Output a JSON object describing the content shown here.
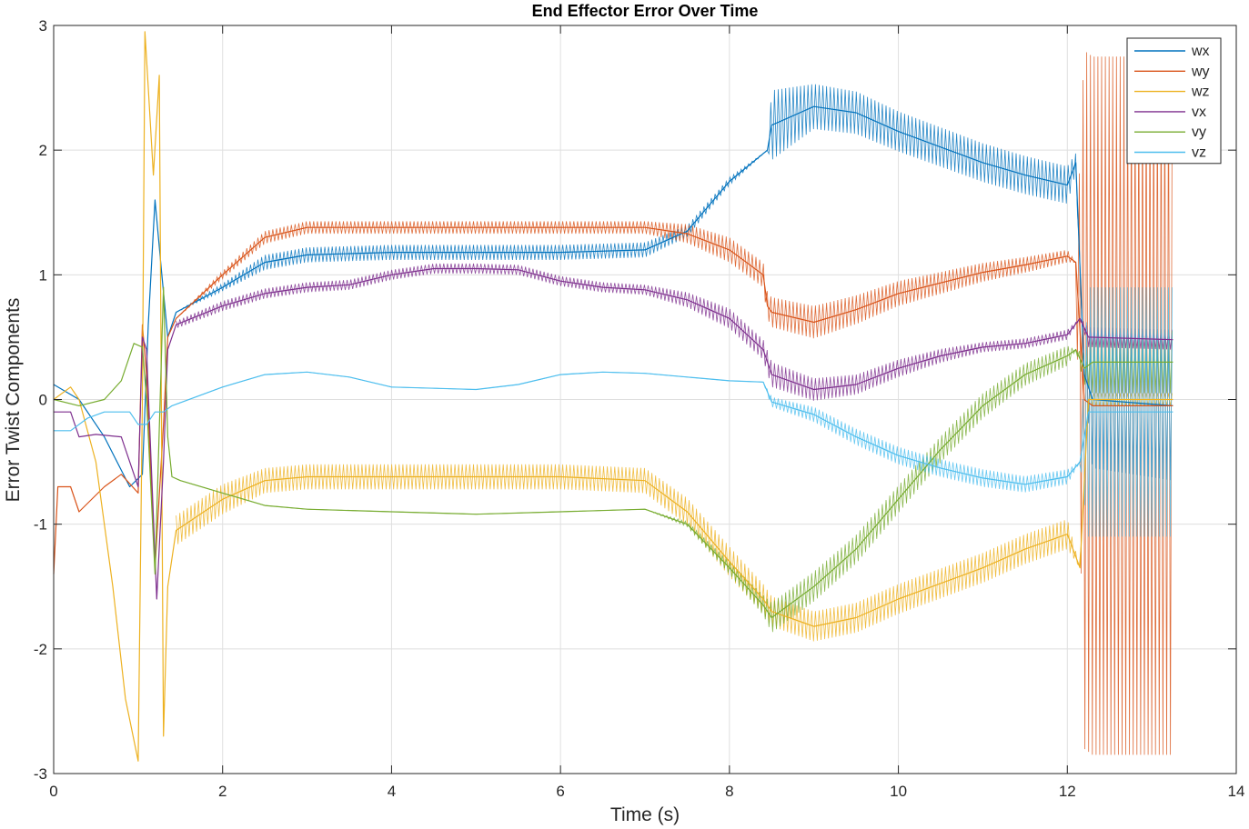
{
  "chart_data": {
    "type": "line",
    "title": "End Effector Error Over Time",
    "xlabel": "Time (s)",
    "ylabel": "Error Twist Components",
    "xlim": [
      0,
      14
    ],
    "ylim": [
      -3,
      3
    ],
    "xticks": [
      0,
      2,
      4,
      6,
      8,
      10,
      12,
      14
    ],
    "yticks": [
      -3,
      -2,
      -1,
      0,
      1,
      2,
      3
    ],
    "grid": true,
    "legend": {
      "placement": "top-right"
    },
    "series": [
      {
        "name": "wx",
        "color": "#0072BD",
        "points": [
          [
            0,
            0.12
          ],
          [
            0.3,
            0.0
          ],
          [
            0.6,
            -0.3
          ],
          [
            0.9,
            -0.7
          ],
          [
            1.05,
            -0.6
          ],
          [
            1.12,
            0.6
          ],
          [
            1.2,
            1.6
          ],
          [
            1.28,
            1.0
          ],
          [
            1.35,
            0.5
          ],
          [
            1.45,
            0.7
          ],
          [
            2,
            0.9
          ],
          [
            2.5,
            1.1
          ],
          [
            3,
            1.16
          ],
          [
            4,
            1.18
          ],
          [
            5,
            1.18
          ],
          [
            6,
            1.18
          ],
          [
            7,
            1.2
          ],
          [
            7.5,
            1.35
          ],
          [
            8,
            1.75
          ],
          [
            8.45,
            2.0
          ],
          [
            8.5,
            2.2
          ],
          [
            9,
            2.35
          ],
          [
            9.5,
            2.3
          ],
          [
            10,
            2.15
          ],
          [
            11,
            1.9
          ],
          [
            11.5,
            1.8
          ],
          [
            12,
            1.72
          ],
          [
            12.1,
            1.9
          ],
          [
            12.2,
            0.2
          ],
          [
            12.3,
            0.0
          ],
          [
            13.25,
            -0.05
          ]
        ],
        "band": [
          [
            1.45,
            0.0
          ],
          [
            2,
            0.03
          ],
          [
            2.5,
            0.06
          ],
          [
            3,
            0.06
          ],
          [
            7,
            0.06
          ],
          [
            8,
            0.03
          ],
          [
            8.45,
            0.0
          ],
          [
            8.5,
            0.28
          ],
          [
            9,
            0.18
          ],
          [
            10,
            0.16
          ],
          [
            12,
            0.15
          ],
          [
            12.2,
            0.0
          ],
          [
            12.3,
            0.55
          ],
          [
            13.25,
            0.6
          ]
        ]
      },
      {
        "name": "wy",
        "color": "#D95319",
        "points": [
          [
            0,
            -1.4
          ],
          [
            0.05,
            -0.7
          ],
          [
            0.2,
            -0.7
          ],
          [
            0.3,
            -0.9
          ],
          [
            0.6,
            -0.7
          ],
          [
            0.8,
            -0.6
          ],
          [
            1.0,
            -0.75
          ],
          [
            1.05,
            0.6
          ],
          [
            1.1,
            0.2
          ],
          [
            1.2,
            -1.35
          ],
          [
            1.3,
            -0.2
          ],
          [
            1.35,
            0.5
          ],
          [
            1.45,
            0.65
          ],
          [
            2,
            1.0
          ],
          [
            2.5,
            1.3
          ],
          [
            3,
            1.38
          ],
          [
            4,
            1.38
          ],
          [
            5,
            1.38
          ],
          [
            6,
            1.38
          ],
          [
            7,
            1.38
          ],
          [
            7.5,
            1.33
          ],
          [
            8,
            1.2
          ],
          [
            8.4,
            1.0
          ],
          [
            8.45,
            0.75
          ],
          [
            8.5,
            0.7
          ],
          [
            9,
            0.62
          ],
          [
            9.5,
            0.72
          ],
          [
            10,
            0.85
          ],
          [
            11,
            1.02
          ],
          [
            11.5,
            1.08
          ],
          [
            12,
            1.15
          ],
          [
            12.1,
            1.1
          ],
          [
            12.2,
            0.0
          ],
          [
            12.3,
            -0.05
          ],
          [
            13.25,
            -0.05
          ]
        ],
        "band": [
          [
            1.45,
            0.0
          ],
          [
            2,
            0.03
          ],
          [
            2.5,
            0.05
          ],
          [
            7,
            0.05
          ],
          [
            8,
            0.1
          ],
          [
            8.45,
            0.1
          ],
          [
            8.5,
            0.12
          ],
          [
            9,
            0.13
          ],
          [
            10,
            0.1
          ],
          [
            12,
            0.05
          ],
          [
            12.1,
            0.0
          ],
          [
            12.2,
            2.8
          ],
          [
            13.25,
            2.8
          ]
        ]
      },
      {
        "name": "wz",
        "color": "#EDB120",
        "points": [
          [
            0,
            0.0
          ],
          [
            0.2,
            0.1
          ],
          [
            0.3,
            0.0
          ],
          [
            0.5,
            -0.5
          ],
          [
            0.7,
            -1.5
          ],
          [
            0.85,
            -2.4
          ],
          [
            1.0,
            -2.9
          ],
          [
            1.05,
            0.0
          ],
          [
            1.08,
            2.95
          ],
          [
            1.12,
            2.5
          ],
          [
            1.18,
            1.8
          ],
          [
            1.25,
            2.6
          ],
          [
            1.3,
            -2.7
          ],
          [
            1.35,
            -1.5
          ],
          [
            1.45,
            -1.05
          ],
          [
            2,
            -0.8
          ],
          [
            2.5,
            -0.65
          ],
          [
            3,
            -0.62
          ],
          [
            4,
            -0.62
          ],
          [
            5,
            -0.62
          ],
          [
            6,
            -0.62
          ],
          [
            7,
            -0.65
          ],
          [
            7.5,
            -0.9
          ],
          [
            8,
            -1.3
          ],
          [
            8.4,
            -1.6
          ],
          [
            8.5,
            -1.7
          ],
          [
            9,
            -1.82
          ],
          [
            9.5,
            -1.75
          ],
          [
            10,
            -1.6
          ],
          [
            11,
            -1.35
          ],
          [
            11.5,
            -1.2
          ],
          [
            12,
            -1.08
          ],
          [
            12.15,
            -1.35
          ],
          [
            12.25,
            0.0
          ],
          [
            13.25,
            0.0
          ]
        ],
        "band": [
          [
            1.45,
            0.12
          ],
          [
            2,
            0.12
          ],
          [
            2.5,
            0.1
          ],
          [
            7,
            0.1
          ],
          [
            8,
            0.12
          ],
          [
            8.5,
            0.12
          ],
          [
            9,
            0.12
          ],
          [
            10,
            0.12
          ],
          [
            12,
            0.12
          ],
          [
            12.15,
            0.0
          ],
          [
            12.25,
            0.05
          ],
          [
            13.25,
            0.05
          ]
        ]
      },
      {
        "name": "vx",
        "color": "#7E2F8E",
        "points": [
          [
            0,
            -0.1
          ],
          [
            0.2,
            -0.1
          ],
          [
            0.3,
            -0.3
          ],
          [
            0.5,
            -0.28
          ],
          [
            0.8,
            -0.3
          ],
          [
            1.0,
            -0.7
          ],
          [
            1.05,
            0.5
          ],
          [
            1.1,
            0.4
          ],
          [
            1.22,
            -1.6
          ],
          [
            1.3,
            -0.5
          ],
          [
            1.35,
            0.4
          ],
          [
            1.45,
            0.6
          ],
          [
            2,
            0.75
          ],
          [
            2.5,
            0.85
          ],
          [
            3,
            0.9
          ],
          [
            3.5,
            0.92
          ],
          [
            4,
            1.0
          ],
          [
            4.5,
            1.05
          ],
          [
            5,
            1.05
          ],
          [
            5.5,
            1.04
          ],
          [
            6,
            0.95
          ],
          [
            6.5,
            0.9
          ],
          [
            7,
            0.88
          ],
          [
            7.5,
            0.8
          ],
          [
            8,
            0.65
          ],
          [
            8.4,
            0.4
          ],
          [
            8.5,
            0.2
          ],
          [
            9,
            0.08
          ],
          [
            9.5,
            0.12
          ],
          [
            10,
            0.25
          ],
          [
            10.5,
            0.35
          ],
          [
            11,
            0.42
          ],
          [
            11.5,
            0.45
          ],
          [
            12,
            0.52
          ],
          [
            12.15,
            0.65
          ],
          [
            12.25,
            0.5
          ],
          [
            13.25,
            0.48
          ]
        ],
        "band": [
          [
            1.45,
            0.03
          ],
          [
            2,
            0.04
          ],
          [
            2.5,
            0.04
          ],
          [
            7,
            0.04
          ],
          [
            7.5,
            0.06
          ],
          [
            8,
            0.08
          ],
          [
            8.4,
            0.08
          ],
          [
            8.5,
            0.1
          ],
          [
            9,
            0.09
          ],
          [
            10,
            0.07
          ],
          [
            11,
            0.04
          ],
          [
            12,
            0.04
          ],
          [
            12.15,
            0.0
          ],
          [
            12.25,
            0.08
          ],
          [
            13.25,
            0.08
          ]
        ]
      },
      {
        "name": "vy",
        "color": "#77AC30",
        "points": [
          [
            0,
            0.0
          ],
          [
            0.3,
            -0.05
          ],
          [
            0.6,
            0.0
          ],
          [
            0.8,
            0.15
          ],
          [
            0.95,
            0.45
          ],
          [
            1.05,
            0.42
          ],
          [
            1.1,
            0.0
          ],
          [
            1.2,
            -1.4
          ],
          [
            1.3,
            0.9
          ],
          [
            1.35,
            -0.3
          ],
          [
            1.4,
            -0.62
          ],
          [
            1.5,
            -0.65
          ],
          [
            2,
            -0.75
          ],
          [
            2.5,
            -0.85
          ],
          [
            3,
            -0.88
          ],
          [
            4,
            -0.9
          ],
          [
            5,
            -0.92
          ],
          [
            6,
            -0.9
          ],
          [
            7,
            -0.88
          ],
          [
            7.5,
            -1.0
          ],
          [
            8,
            -1.35
          ],
          [
            8.4,
            -1.65
          ],
          [
            8.5,
            -1.75
          ],
          [
            9,
            -1.5
          ],
          [
            9.5,
            -1.2
          ],
          [
            10,
            -0.8
          ],
          [
            10.5,
            -0.4
          ],
          [
            11,
            -0.05
          ],
          [
            11.5,
            0.2
          ],
          [
            12,
            0.35
          ],
          [
            12.1,
            0.4
          ],
          [
            12.2,
            0.25
          ],
          [
            12.3,
            0.3
          ],
          [
            13.25,
            0.3
          ]
        ],
        "band": [
          [
            1.45,
            0.0
          ],
          [
            2,
            0.0
          ],
          [
            7,
            0.0
          ],
          [
            7.5,
            0.02
          ],
          [
            8,
            0.05
          ],
          [
            8.4,
            0.08
          ],
          [
            8.5,
            0.12
          ],
          [
            9,
            0.12
          ],
          [
            10,
            0.11
          ],
          [
            11,
            0.1
          ],
          [
            12,
            0.08
          ],
          [
            12.1,
            0.0
          ],
          [
            12.3,
            0.25
          ],
          [
            13.25,
            0.25
          ]
        ]
      },
      {
        "name": "vz",
        "color": "#4DBEEE",
        "points": [
          [
            0,
            -0.25
          ],
          [
            0.2,
            -0.25
          ],
          [
            0.4,
            -0.15
          ],
          [
            0.6,
            -0.1
          ],
          [
            0.9,
            -0.1
          ],
          [
            1.0,
            -0.2
          ],
          [
            1.1,
            -0.2
          ],
          [
            1.2,
            -0.1
          ],
          [
            1.3,
            -0.1
          ],
          [
            1.4,
            -0.05
          ],
          [
            2,
            0.1
          ],
          [
            2.5,
            0.2
          ],
          [
            3,
            0.22
          ],
          [
            3.5,
            0.18
          ],
          [
            4,
            0.1
          ],
          [
            5,
            0.08
          ],
          [
            5.5,
            0.12
          ],
          [
            6,
            0.2
          ],
          [
            6.5,
            0.22
          ],
          [
            7,
            0.21
          ],
          [
            7.5,
            0.18
          ],
          [
            8,
            0.15
          ],
          [
            8.4,
            0.14
          ],
          [
            8.5,
            -0.02
          ],
          [
            9,
            -0.12
          ],
          [
            9.5,
            -0.3
          ],
          [
            10,
            -0.45
          ],
          [
            10.5,
            -0.55
          ],
          [
            11,
            -0.63
          ],
          [
            11.5,
            -0.68
          ],
          [
            12,
            -0.62
          ],
          [
            12.15,
            -0.5
          ],
          [
            12.25,
            -0.1
          ],
          [
            13.25,
            -0.1
          ]
        ],
        "band": [
          [
            1.45,
            0.0
          ],
          [
            2,
            0.0
          ],
          [
            8.4,
            0.0
          ],
          [
            8.5,
            0.04
          ],
          [
            9,
            0.06
          ],
          [
            10,
            0.07
          ],
          [
            11,
            0.07
          ],
          [
            12,
            0.06
          ],
          [
            12.15,
            0.0
          ],
          [
            12.25,
            1.0
          ],
          [
            13.25,
            1.0
          ]
        ]
      }
    ]
  }
}
